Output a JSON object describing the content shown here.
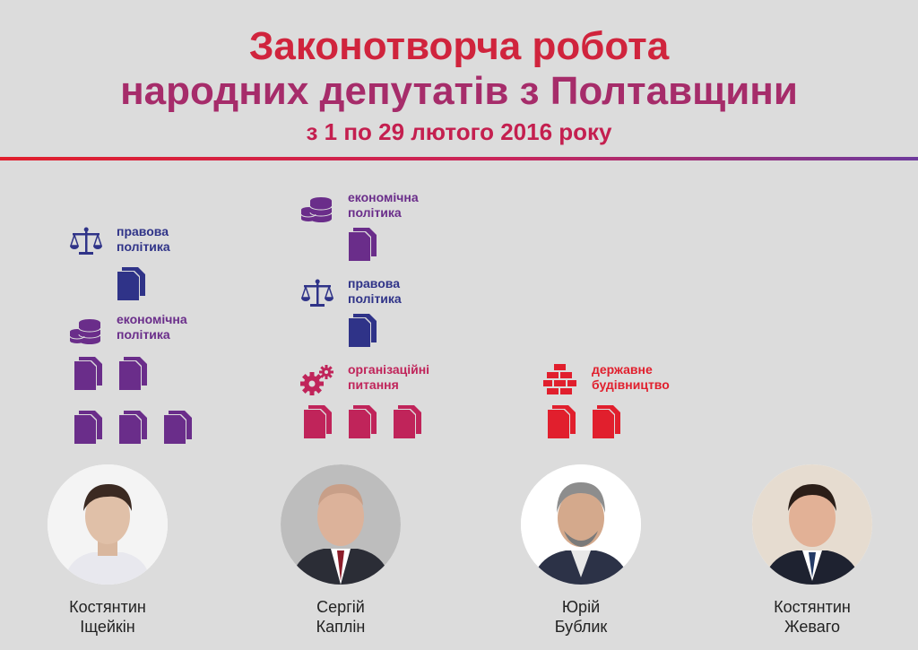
{
  "header": {
    "title_line1": "Законотворча робота",
    "title_line2": "народних депутатів з Полтавщини",
    "subtitle": "з 1 по 29 лютого 2016 року"
  },
  "colors": {
    "blue": "#2f3388",
    "purple": "#6a2d8a",
    "magenta": "#c0245a",
    "red": "#e11f2d"
  },
  "deputies": [
    {
      "name": "Костянтин\nІщейкін",
      "categories": [
        {
          "label": "правова\nполітика",
          "icon": "scales-icon",
          "bills": 1
        },
        {
          "label": "економічна\nполітика",
          "icon": "coins-icon",
          "bills": 5
        }
      ]
    },
    {
      "name": "Сергій\nКаплін",
      "categories": [
        {
          "label": "економічна\nполітика",
          "icon": "coins-icon",
          "bills": 1
        },
        {
          "label": "правова\nполітика",
          "icon": "scales-icon",
          "bills": 1
        },
        {
          "label": "організаційні\nпитання",
          "icon": "gears-icon",
          "bills": 3
        }
      ]
    },
    {
      "name": "Юрій\nБублик",
      "categories": [
        {
          "label": "державне\nбудівництво",
          "icon": "bricks-icon",
          "bills": 2
        }
      ]
    },
    {
      "name": "Костянтин\nЖеваго",
      "categories": []
    }
  ]
}
